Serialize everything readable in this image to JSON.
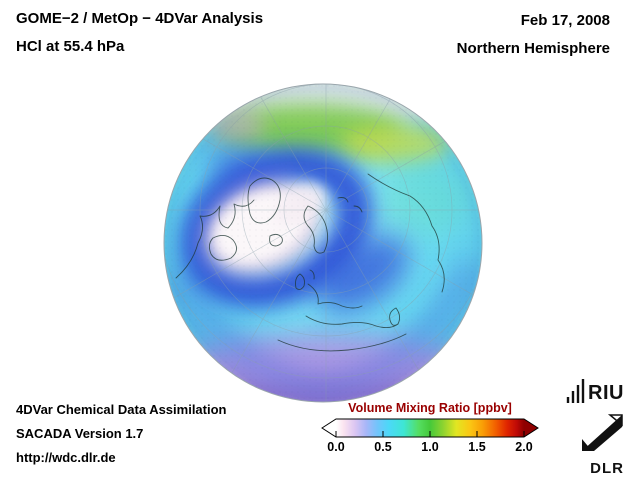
{
  "header": {
    "title_line1": "GOME−2 / MetOp − 4DVar Analysis",
    "title_line2": "HCl at 55.4 hPa",
    "date": "Feb 17, 2008",
    "hemisphere": "Northern Hemisphere"
  },
  "footer": {
    "line1": "4DVar Chemical Data Assimilation",
    "line2": "SACADA Version 1.7",
    "line3": "http://wdc.dlr.de"
  },
  "logos": {
    "riu_text": "RIU",
    "dlr_text": "DLR"
  },
  "colors": {
    "colorbar_title": "#990000",
    "text": "#000000",
    "background": "#ffffff"
  },
  "chart_data": {
    "type": "heatmap",
    "title": "GOME−2 / MetOp − 4DVar Analysis",
    "subtitle": "HCl at 55.4 hPa",
    "species": "HCl",
    "pressure_hPa": 55.4,
    "date": "Feb 17, 2008",
    "region": "Northern Hemisphere",
    "projection": "orthographic hemispheric view, North Pole near center",
    "colorbar": {
      "label": "Volume Mixing Ratio [ppbv]",
      "units": "ppbv",
      "range": [
        0.0,
        2.0
      ],
      "ticks": [
        "0.0",
        "0.5",
        "1.0",
        "1.5",
        "2.0"
      ],
      "gradient": [
        {
          "offset": "0%",
          "color": "#ffffff"
        },
        {
          "offset": "4%",
          "color": "#fbe4f0"
        },
        {
          "offset": "10%",
          "color": "#dcc6f2"
        },
        {
          "offset": "16%",
          "color": "#a8b6f8"
        },
        {
          "offset": "22%",
          "color": "#72c4fb"
        },
        {
          "offset": "28%",
          "color": "#4cd8f8"
        },
        {
          "offset": "36%",
          "color": "#3ee6d4"
        },
        {
          "offset": "44%",
          "color": "#55de62"
        },
        {
          "offset": "50%",
          "color": "#45c93a"
        },
        {
          "offset": "57%",
          "color": "#8ed330"
        },
        {
          "offset": "64%",
          "color": "#e2e622"
        },
        {
          "offset": "71%",
          "color": "#fac814"
        },
        {
          "offset": "78%",
          "color": "#f99e06"
        },
        {
          "offset": "85%",
          "color": "#f25f00"
        },
        {
          "offset": "91%",
          "color": "#e02500"
        },
        {
          "offset": "96%",
          "color": "#c00a06"
        },
        {
          "offset": "100%",
          "color": "#8f0000"
        }
      ]
    },
    "features": [
      {
        "name": "polar-vortex-interior",
        "approx_value_ppbv": 0.05,
        "color": "#fbf7f9",
        "note": "white/pale pink area over Greenland-Scandinavia"
      },
      {
        "name": "vortex-edge-ring",
        "approx_value_ppbv": 0.35,
        "color": "#2b4ed6",
        "note": "dark blue annulus around the vortex, tongue extending southeast"
      },
      {
        "name": "mid-latitude-background",
        "approx_value_ppbv": 0.6,
        "color": "#6cdcf2",
        "note": "cyan field covering most of hemisphere"
      },
      {
        "name": "low-latitude-far-limb-band",
        "approx_value_ppbv": 1.1,
        "color": "#7cc840",
        "note": "green-yellow band at top limb"
      },
      {
        "name": "low-latitude-near-limb-band",
        "approx_value_ppbv": 0.2,
        "color": "#b493e2",
        "note": "violet-lavender band along bottom limb"
      }
    ]
  }
}
